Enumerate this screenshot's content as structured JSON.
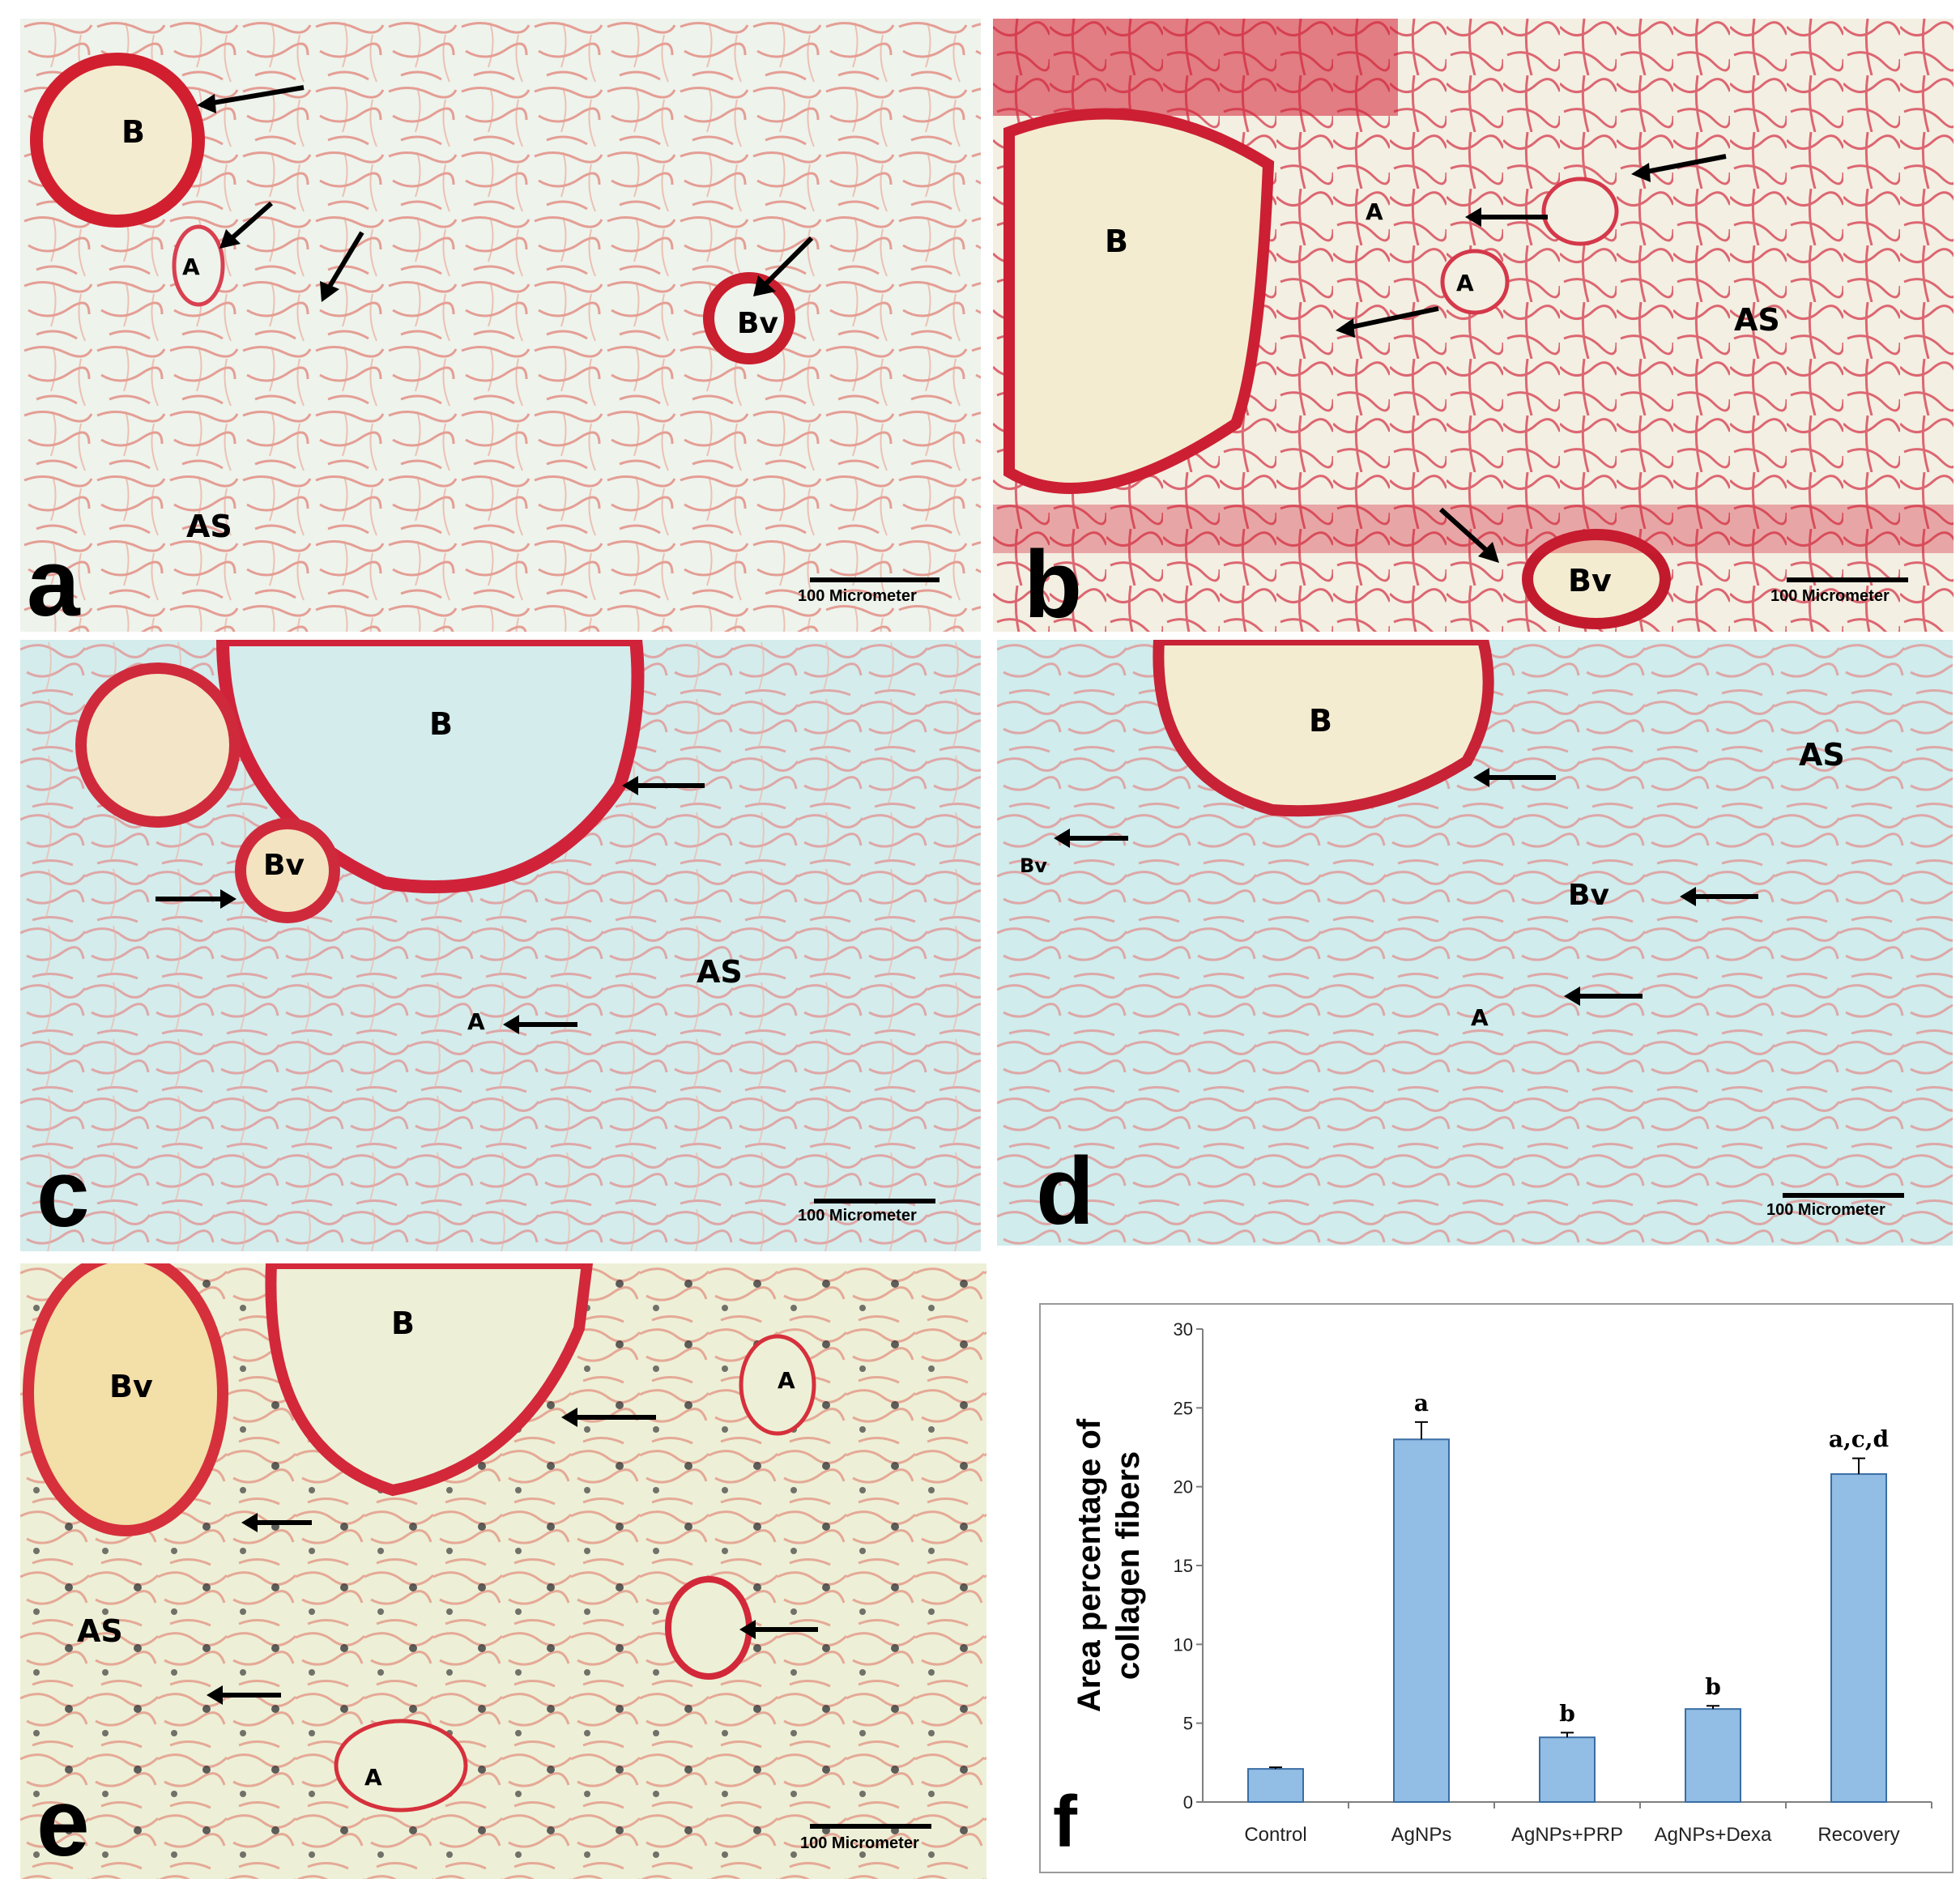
{
  "panels": [
    {
      "id": "a",
      "letter": "a",
      "scale": "100 Micrometer",
      "labels": [
        {
          "key": "B",
          "text": "B"
        },
        {
          "key": "A",
          "text": "A"
        },
        {
          "key": "Bv",
          "text": "Bv"
        },
        {
          "key": "AS",
          "text": "AS"
        }
      ],
      "bg": "#eef3ec",
      "tint": "#d9303d"
    },
    {
      "id": "b",
      "letter": "b",
      "scale": "100 Micrometer",
      "labels": [
        {
          "key": "B",
          "text": "B"
        },
        {
          "key": "A1",
          "text": "A"
        },
        {
          "key": "A2",
          "text": "A"
        },
        {
          "key": "AS",
          "text": "AS"
        },
        {
          "key": "Bv",
          "text": "Bv"
        }
      ],
      "bg": "#f3efe2",
      "tint": "#d21f34"
    },
    {
      "id": "c",
      "letter": "c",
      "scale": "100 Micrometer",
      "labels": [
        {
          "key": "B",
          "text": "B"
        },
        {
          "key": "Bv",
          "text": "Bv"
        },
        {
          "key": "AS",
          "text": "AS"
        },
        {
          "key": "A",
          "text": "A"
        }
      ],
      "bg": "#d4ecec",
      "tint": "#e0374a"
    },
    {
      "id": "d",
      "letter": "d",
      "scale": "100 Micrometer",
      "labels": [
        {
          "key": "B",
          "text": "B"
        },
        {
          "key": "AS",
          "text": "AS"
        },
        {
          "key": "Bv1",
          "text": "Bv"
        },
        {
          "key": "Bv2",
          "text": "Bv"
        },
        {
          "key": "A",
          "text": "A"
        }
      ],
      "bg": "#d0ecec",
      "tint": "#e0374a"
    },
    {
      "id": "e",
      "letter": "e",
      "scale": "100 Micrometer",
      "labels": [
        {
          "key": "Bv",
          "text": "Bv"
        },
        {
          "key": "B",
          "text": "B"
        },
        {
          "key": "A1",
          "text": "A"
        },
        {
          "key": "AS",
          "text": "AS"
        },
        {
          "key": "A2",
          "text": "A"
        }
      ],
      "bg": "#edf0d6",
      "tint": "#d6303c"
    }
  ],
  "figure_f": {
    "letter": "f",
    "chart_data": {
      "type": "bar",
      "categories": [
        "Control",
        "AgNPs",
        "AgNPs+PRP",
        "AgNPs+Dexa",
        "Recovery"
      ],
      "values": [
        2.1,
        23.0,
        4.1,
        5.9,
        20.8
      ],
      "errors": [
        0.1,
        1.1,
        0.3,
        0.2,
        1.0
      ],
      "significance": [
        "",
        "a",
        "b",
        "b",
        "a,c,d"
      ],
      "ylabel": "Area percentage of collagen fibers",
      "xlabel": "",
      "ylim": [
        0,
        30
      ],
      "yticks": [
        0,
        5,
        10,
        15,
        20,
        25,
        30
      ],
      "bar_color": "#92bde4",
      "bar_edge": "#3a6ea5",
      "grid": false
    }
  }
}
